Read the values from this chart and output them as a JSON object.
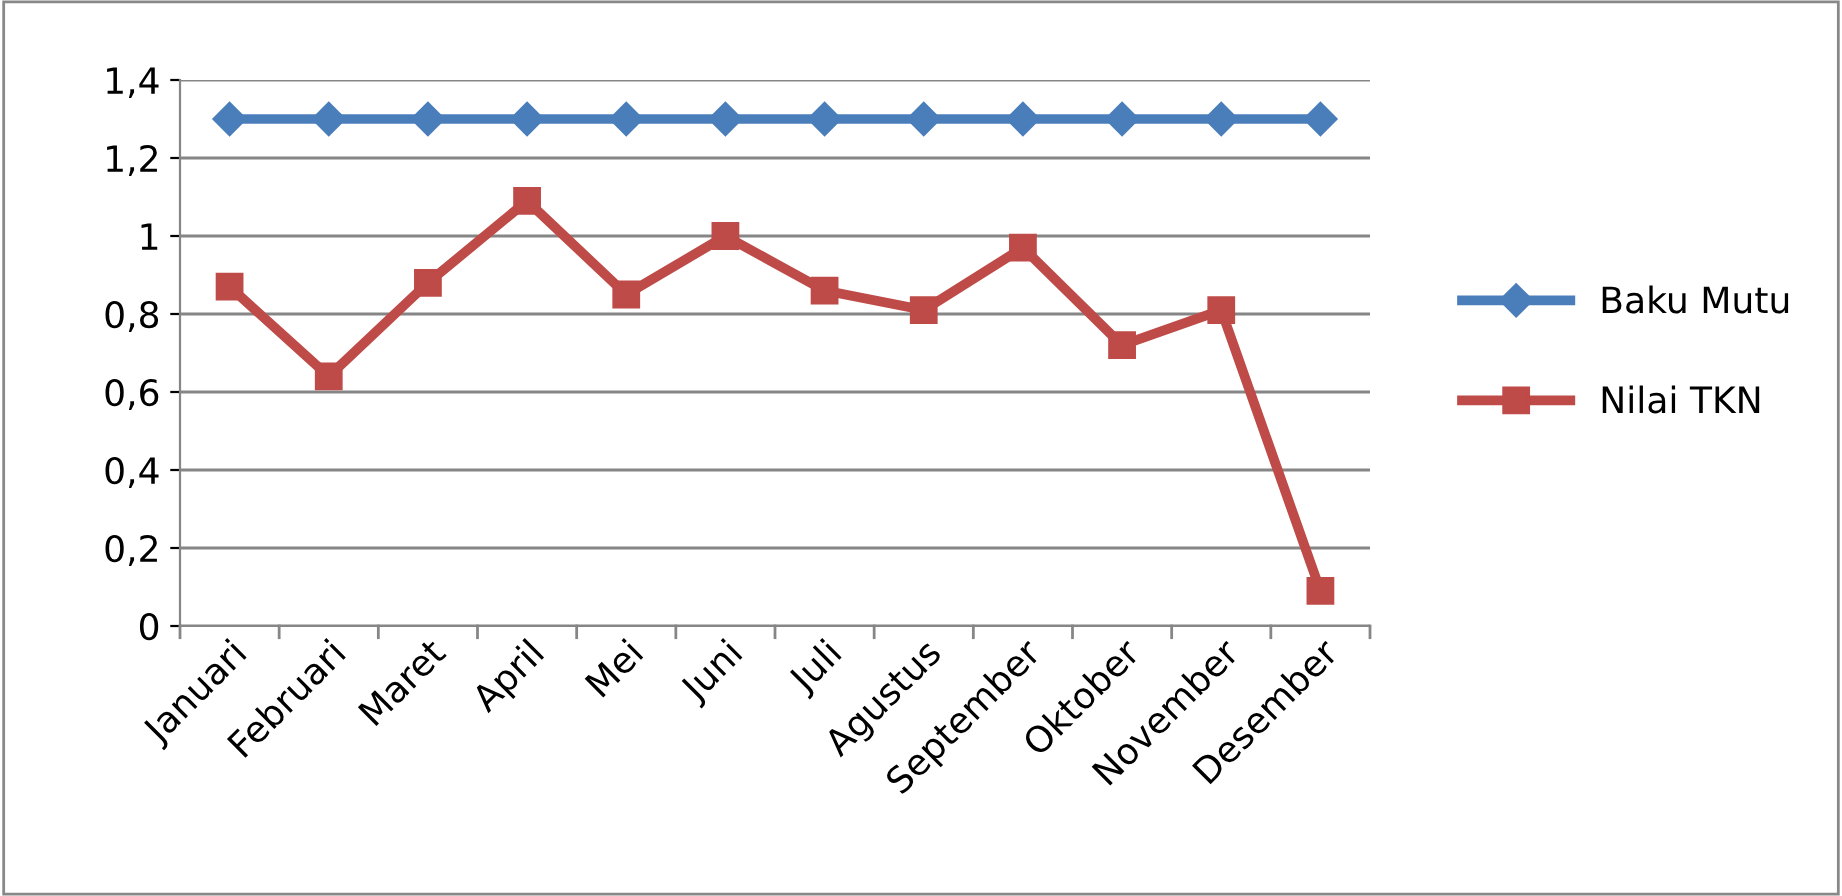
{
  "chart_data": {
    "type": "line",
    "categories": [
      "Januari",
      "Februari",
      "Maret",
      "April",
      "Mei",
      "Juni",
      "Juli",
      "Agustus",
      "September",
      "Oktober",
      "November",
      "Desember"
    ],
    "series": [
      {
        "name": "Baku Mutu",
        "color": "#4a7ebb",
        "marker": "diamond",
        "values": [
          1.3,
          1.3,
          1.3,
          1.3,
          1.3,
          1.3,
          1.3,
          1.3,
          1.3,
          1.3,
          1.3,
          1.3
        ]
      },
      {
        "name": "Nilai TKN",
        "color": "#be4b48",
        "marker": "square",
        "values": [
          0.87,
          0.64,
          0.88,
          1.09,
          0.85,
          1.0,
          0.86,
          0.81,
          0.97,
          0.72,
          0.81,
          0.09
        ]
      }
    ],
    "ylim": [
      0,
      1.4
    ],
    "yticks": [
      0,
      {
        "value": 0.2,
        "label": "0,2"
      },
      {
        "value": 0.4,
        "label": "0,4"
      },
      {
        "value": 0.6,
        "label": "0,6"
      },
      {
        "value": 0.8,
        "label": "0,8"
      },
      1,
      {
        "value": 1.2,
        "label": "1,2"
      },
      {
        "value": 1.4,
        "label": "1,4"
      }
    ],
    "grid": "y",
    "legend": "right",
    "line_style": "solid"
  }
}
